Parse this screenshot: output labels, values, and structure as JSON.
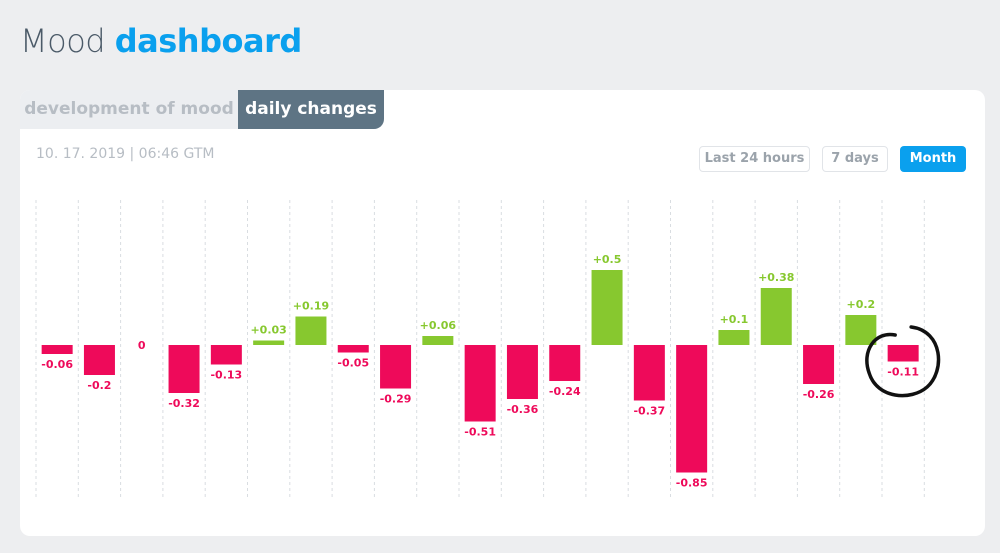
{
  "title": {
    "light": "Mood",
    "bold": "dashboard"
  },
  "tabs": [
    {
      "label": "development of mood",
      "active": false
    },
    {
      "label": "daily changes",
      "active": true
    }
  ],
  "timestamp": "10. 17. 2019 | 06:46 GTM",
  "range_buttons": [
    {
      "label": "Last 24 hours",
      "active": false
    },
    {
      "label": "7 days",
      "active": false
    },
    {
      "label": "Month",
      "active": true
    }
  ],
  "colors": {
    "accent": "#0aa0ee",
    "positive": "#87c82f",
    "negative": "#ee0a5a",
    "zero_label": "#ee0a5a",
    "annotation": "#111111"
  },
  "chart_data": {
    "type": "bar",
    "values": [
      -0.06,
      -0.2,
      0,
      -0.32,
      -0.13,
      0.03,
      0.19,
      -0.05,
      -0.29,
      0.06,
      -0.51,
      -0.36,
      -0.24,
      0.5,
      -0.37,
      -0.85,
      0.1,
      0.38,
      -0.26,
      0.2,
      -0.11
    ],
    "labels": [
      "-0.06",
      "-0.2",
      "0",
      "-0.32",
      "-0.13",
      "+0.03",
      "+0.19",
      "-0.05",
      "-0.29",
      "+0.06",
      "-0.51",
      "-0.36",
      "-0.24",
      "+0.5",
      "-0.37",
      "-0.85",
      "+0.1",
      "+0.38",
      "-0.26",
      "+0.2",
      "-0.11"
    ],
    "grid": "vertical-dashed",
    "highlighted_index": 20,
    "highlight_style": "hand-drawn circle"
  }
}
